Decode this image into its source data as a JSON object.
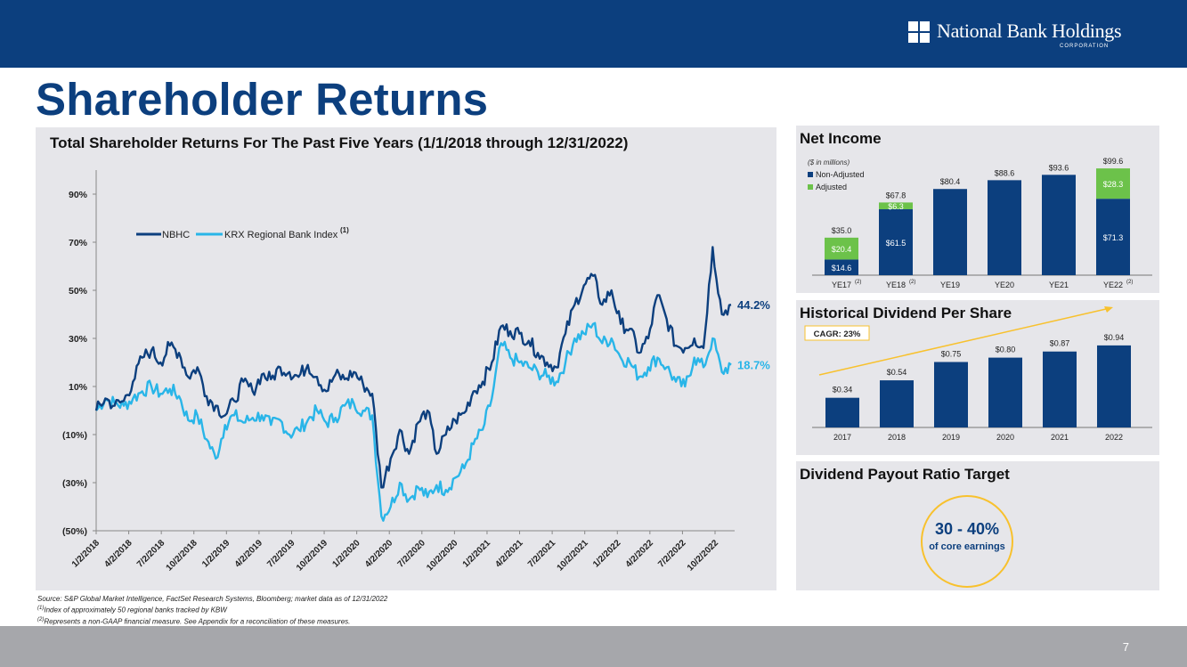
{
  "header": {
    "logo_name": "National Bank Holdings",
    "logo_sub": "CORPORATION",
    "page_title": "Shareholder Returns",
    "page_number": "7"
  },
  "colors": {
    "navy": "#0c3f7e",
    "light_blue": "#29b5e8",
    "green": "#6cc24a",
    "gold": "#f8c12d",
    "panel": "#e6e6ea"
  },
  "chart_data": [
    {
      "id": "tsr",
      "type": "line",
      "title": "Total Shareholder Returns For The Past Five Years (1/1/2018 through 12/31/2022)",
      "ylim": [
        -50,
        100
      ],
      "ytick_values": [
        -50,
        -30,
        -10,
        10,
        30,
        50,
        70,
        90
      ],
      "ytick_labels": [
        "(50%)",
        "(30%)",
        "(10%)",
        "10%",
        "30%",
        "50%",
        "70%",
        "90%"
      ],
      "xtick_labels": [
        "1/2/2018",
        "4/2/2018",
        "7/2/2018",
        "10/2/2018",
        "1/2/2019",
        "4/2/2019",
        "7/2/2019",
        "10/2/2019",
        "1/2/2020",
        "4/2/2020",
        "7/2/2020",
        "10/2/2020",
        "1/2/2021",
        "4/2/2021",
        "7/2/2021",
        "10/2/2021",
        "1/2/2022",
        "4/2/2022",
        "7/2/2022",
        "10/2/2022"
      ],
      "legend": {
        "position": "top-left",
        "footnote": "(1)"
      },
      "series": [
        {
          "name": "NBHC",
          "color": "#0c3f7e",
          "end_label": "44.2%",
          "values": [
            0,
            5,
            2,
            4,
            12,
            22,
            25,
            20,
            27,
            24,
            14,
            18,
            6,
            2,
            -2,
            4,
            12,
            8,
            15,
            13,
            18,
            16,
            14,
            19,
            14,
            8,
            15,
            13,
            16,
            11,
            7,
            -32,
            -20,
            -8,
            -18,
            -5,
            0,
            -18,
            -10,
            -4,
            -1,
            8,
            12,
            20,
            35,
            33,
            32,
            29,
            24,
            20,
            18,
            32,
            44,
            52,
            56,
            44,
            50,
            36,
            34,
            24,
            30,
            48,
            38,
            27,
            26,
            30,
            26,
            68,
            40,
            44
          ]
        },
        {
          "name": "KRX Regional Bank Index",
          "color": "#29b5e8",
          "end_label": "18.7%",
          "values": [
            0,
            5,
            3,
            2,
            5,
            8,
            10,
            7,
            9,
            6,
            -4,
            -2,
            -12,
            -20,
            -6,
            -2,
            -5,
            -3,
            -2,
            -6,
            -4,
            -10,
            -8,
            -4,
            0,
            -5,
            -3,
            2,
            3,
            0,
            -2,
            -44,
            -40,
            -30,
            -37,
            -32,
            -36,
            -31,
            -33,
            -28,
            -24,
            -14,
            -8,
            5,
            28,
            22,
            20,
            18,
            16,
            14,
            12,
            20,
            30,
            32,
            36,
            28,
            30,
            22,
            20,
            14,
            18,
            22,
            18,
            12,
            10,
            22,
            18,
            30,
            16,
            19
          ]
        }
      ]
    },
    {
      "id": "net_income",
      "type": "bar",
      "title": "Net Income",
      "subtitle": "($ in millions)",
      "categories": [
        "YE17",
        "YE18",
        "YE19",
        "YE20",
        "YE21",
        "YE22"
      ],
      "category_notes": [
        "(2)",
        "(2)",
        "",
        "",
        "",
        "(2)"
      ],
      "legend": [
        "Non-Adjusted",
        "Adjusted"
      ],
      "series": [
        {
          "name": "Non-Adjusted",
          "values": [
            14.6,
            61.5,
            80.4,
            88.6,
            93.6,
            71.3
          ],
          "labels": [
            "$14.6",
            "$61.5",
            "",
            "",
            "",
            "$71.3"
          ]
        },
        {
          "name": "Adjusted",
          "values": [
            20.4,
            6.3,
            0,
            0,
            0,
            28.3
          ],
          "labels": [
            "$20.4",
            "$6.3",
            "",
            "",
            "",
            "$28.3"
          ]
        }
      ],
      "totals": [
        "$35.0",
        "$67.8",
        "$80.4",
        "$88.6",
        "$93.6",
        "$99.6"
      ],
      "ylim": [
        0,
        108
      ]
    },
    {
      "id": "dividend",
      "type": "bar",
      "title": "Historical Dividend Per Share",
      "categories": [
        "2017",
        "2018",
        "2019",
        "2020",
        "2021",
        "2022"
      ],
      "values": [
        0.34,
        0.54,
        0.75,
        0.8,
        0.87,
        0.94
      ],
      "labels": [
        "$0.34",
        "$0.54",
        "$0.75",
        "$0.80",
        "$0.87",
        "$0.94"
      ],
      "ylim": [
        0,
        1.0
      ],
      "annotation": "CAGR: 23%"
    }
  ],
  "payout": {
    "title": "Dividend Payout Ratio Target",
    "value": "30 - 40%",
    "caption": "of core earnings"
  },
  "footnotes": {
    "source": "Source: S&P Global Market Intelligence, FactSet Research Systems, Bloomberg; market data as of 12/31/2022",
    "note1_mark": "(1)",
    "note1": "Index of approximately 50 regional banks tracked by KBW",
    "note2_mark": "(2)",
    "note2": "Represents a non-GAAP financial measure.  See Appendix for a reconciliation of these measures."
  }
}
